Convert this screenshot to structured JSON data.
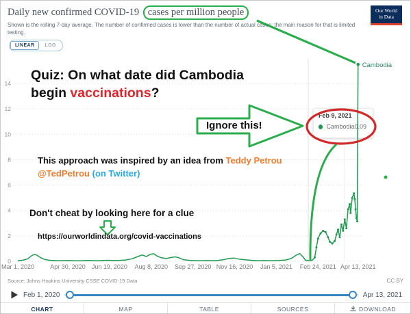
{
  "header": {
    "title_plain": "Daily new confirmed COVID-19",
    "title_boxed": "cases per million people",
    "subtitle_line1": "Shown is the rolling 7-day average. The number of confirmed cases is lower than the number of actual cases; the main reason for that is limited",
    "subtitle_line2": "testing.",
    "logo_line1": "Our World",
    "logo_line2": "in Data"
  },
  "controls": {
    "linear_label": "LINEAR",
    "log_label": "LOG"
  },
  "annotations": {
    "quiz_line1": "Quiz: On what date did Cambodia",
    "quiz_line2_prefix": "begin ",
    "quiz_highlight": "vaccinations",
    "quiz_suffix": "?",
    "ignore_label": "Ignore this!",
    "inspired_prefix": "This approach was inspired by an idea from ",
    "inspired_name": "Teddy Petrou",
    "inspired_handle": "@TedPetrou ",
    "inspired_suffix": "(on Twitter)",
    "dont_cheat": "Don't cheat by looking here for a clue",
    "clue_url": "https://ourworldindata.org/covid-vaccinations"
  },
  "tooltip": {
    "date": "Feb 9, 2021",
    "series": "Cambodia",
    "value": "0.09"
  },
  "chart_data": {
    "type": "line",
    "title": "Daily new confirmed COVID-19 cases per million people",
    "series_label": "Cambodia",
    "line_color": "#1f9a50",
    "grid": "dotted horizontal",
    "legend_position": "end-of-line label",
    "ylim": [
      0,
      14
    ],
    "y_ticks": [
      0,
      2,
      4,
      6,
      8,
      10,
      12,
      14
    ],
    "x_ticks": [
      "Mar 1, 2020",
      "Apr 30, 2020",
      "Jun 19, 2020",
      "Aug 8, 2020",
      "Sep 27, 2020",
      "Nov 16, 2020",
      "Jan 5, 2021",
      "Feb 24, 2021",
      "Apr 13, 2021"
    ],
    "x_tick_dates": [
      "2020-03-01",
      "2020-04-30",
      "2020-06-19",
      "2020-08-08",
      "2020-09-27",
      "2020-11-16",
      "2021-01-05",
      "2021-02-24",
      "2021-04-13"
    ],
    "hover_date": "2021-02-09",
    "points": [
      [
        "2020-03-01",
        0.05
      ],
      [
        "2020-03-08",
        0.1
      ],
      [
        "2020-03-13",
        0.2
      ],
      [
        "2020-03-17",
        0.42
      ],
      [
        "2020-03-21",
        0.55
      ],
      [
        "2020-03-24",
        0.48
      ],
      [
        "2020-03-28",
        0.3
      ],
      [
        "2020-04-02",
        0.15
      ],
      [
        "2020-04-08",
        0.08
      ],
      [
        "2020-04-18",
        0.05
      ],
      [
        "2020-05-01",
        0.06
      ],
      [
        "2020-05-12",
        0.04
      ],
      [
        "2020-05-24",
        0.07
      ],
      [
        "2020-06-05",
        0.05
      ],
      [
        "2020-06-16",
        0.08
      ],
      [
        "2020-06-28",
        0.06
      ],
      [
        "2020-07-08",
        0.1
      ],
      [
        "2020-07-16",
        0.2
      ],
      [
        "2020-07-22",
        0.35
      ],
      [
        "2020-07-28",
        0.5
      ],
      [
        "2020-08-02",
        0.38
      ],
      [
        "2020-08-07",
        0.55
      ],
      [
        "2020-08-11",
        0.6
      ],
      [
        "2020-08-15",
        0.42
      ],
      [
        "2020-08-20",
        0.28
      ],
      [
        "2020-08-26",
        0.22
      ],
      [
        "2020-09-01",
        0.3
      ],
      [
        "2020-09-06",
        0.35
      ],
      [
        "2020-09-10",
        0.28
      ],
      [
        "2020-09-16",
        0.12
      ],
      [
        "2020-09-24",
        0.07
      ],
      [
        "2020-10-04",
        0.05
      ],
      [
        "2020-10-14",
        0.06
      ],
      [
        "2020-10-24",
        0.05
      ],
      [
        "2020-11-02",
        0.12
      ],
      [
        "2020-11-09",
        0.22
      ],
      [
        "2020-11-15",
        0.26
      ],
      [
        "2020-11-21",
        0.18
      ],
      [
        "2020-11-28",
        0.12
      ],
      [
        "2020-12-06",
        0.08
      ],
      [
        "2020-12-14",
        0.05
      ],
      [
        "2020-12-22",
        0.06
      ],
      [
        "2020-12-30",
        0.05
      ],
      [
        "2021-01-08",
        0.07
      ],
      [
        "2021-01-16",
        0.1
      ],
      [
        "2021-01-23",
        0.22
      ],
      [
        "2021-01-28",
        0.45
      ],
      [
        "2021-02-02",
        0.62
      ],
      [
        "2021-02-06",
        0.35
      ],
      [
        "2021-02-09",
        0.09
      ],
      [
        "2021-02-13",
        0.05
      ],
      [
        "2021-02-17",
        0.08
      ],
      [
        "2021-02-20",
        0.3
      ],
      [
        "2021-02-22",
        1.1
      ],
      [
        "2021-02-24",
        1.8
      ],
      [
        "2021-02-27",
        2.2
      ],
      [
        "2021-03-02",
        2.4
      ],
      [
        "2021-03-05",
        2.3
      ],
      [
        "2021-03-08",
        1.9
      ],
      [
        "2021-03-10",
        1.55
      ],
      [
        "2021-03-13",
        1.4
      ],
      [
        "2021-03-16",
        1.6
      ],
      [
        "2021-03-18",
        2.1
      ],
      [
        "2021-03-20",
        2.5
      ],
      [
        "2021-03-22",
        1.9
      ],
      [
        "2021-03-24",
        2.9
      ],
      [
        "2021-03-26",
        2.4
      ],
      [
        "2021-03-28",
        3.3
      ],
      [
        "2021-03-30",
        2.6
      ],
      [
        "2021-04-01",
        4.1
      ],
      [
        "2021-04-03",
        4.5
      ],
      [
        "2021-04-04",
        3.8
      ],
      [
        "2021-04-06",
        5.0
      ],
      [
        "2021-04-08",
        5.35
      ],
      [
        "2021-04-09",
        4.9
      ],
      [
        "2021-04-10",
        4.1
      ],
      [
        "2021-04-11",
        3.4
      ],
      [
        "2021-04-12",
        3.15
      ],
      [
        "2021-04-13",
        15.5
      ]
    ]
  },
  "footer": {
    "source": "Source: Johns Hopkins University CSSE COVID-19 Data",
    "license": "CC BY",
    "timeline": {
      "start": "Feb 1, 2020",
      "end": "Apr 13, 2021"
    },
    "tabs": [
      {
        "label": "CHART"
      },
      {
        "label": "MAP"
      },
      {
        "label": "TABLE"
      },
      {
        "label": "SOURCES"
      },
      {
        "label": "DOWNLOAD"
      }
    ]
  },
  "colors": {
    "line_green": "#1f9a50",
    "annotation_green": "#2bad4e",
    "annotation_red": "#d02a2a",
    "highlight_red": "#e0262c",
    "orange": "#ed7d31",
    "twitter_blue": "#2aa9e0",
    "owid_navy": "#0d2e5c",
    "slider_blue": "#3584c4"
  }
}
